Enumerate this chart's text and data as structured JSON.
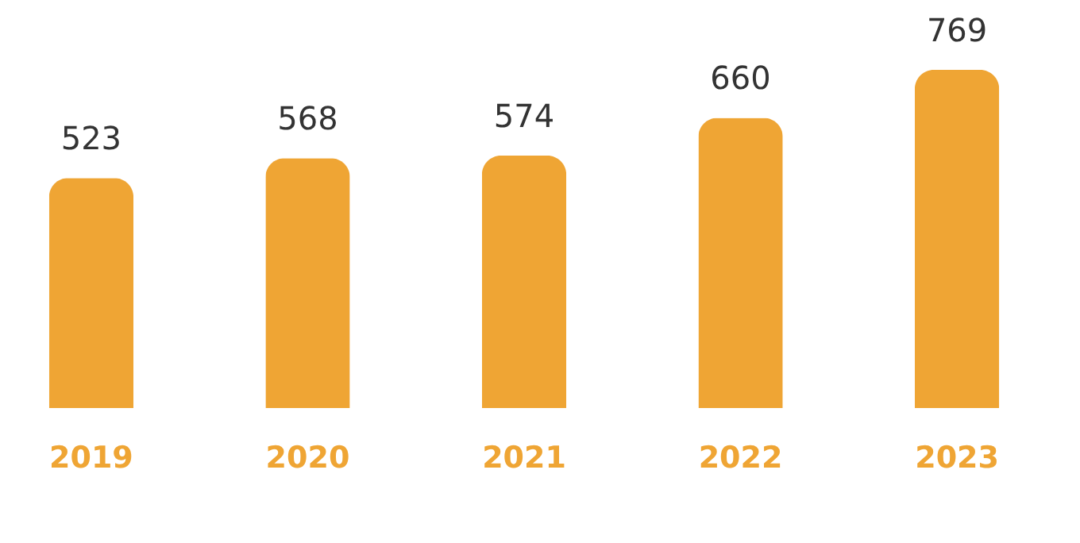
{
  "chart_data": {
    "type": "bar",
    "categories": [
      "2019",
      "2020",
      "2021",
      "2022",
      "2023"
    ],
    "values": [
      523,
      568,
      574,
      660,
      769
    ],
    "color": "#efa534",
    "data_labels": true
  }
}
